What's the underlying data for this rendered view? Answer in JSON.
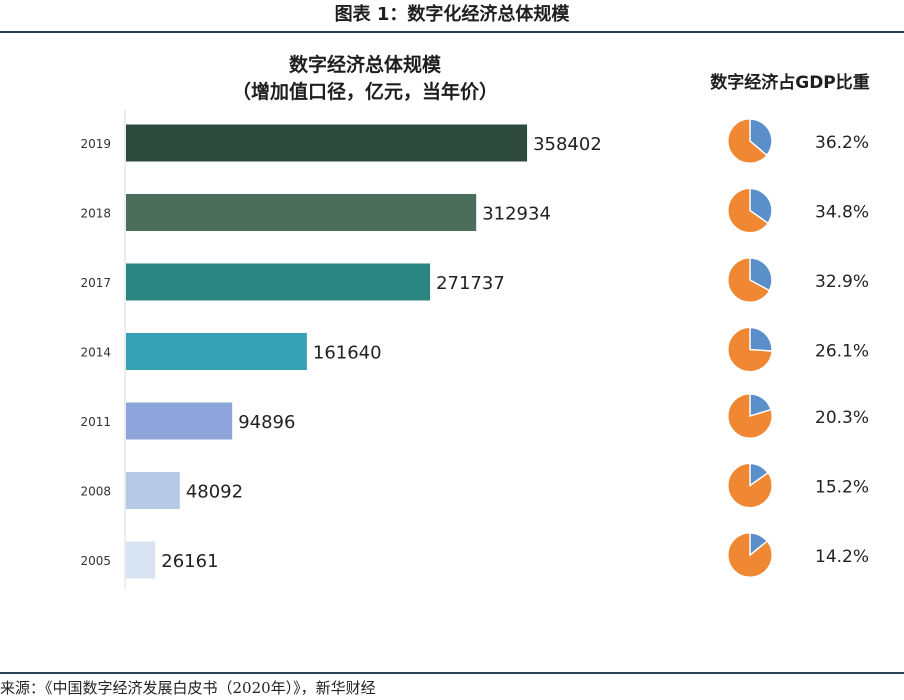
{
  "figure": {
    "title": "图表 1：数字化经济总体规模",
    "source": "来源：《中国数字经济发展白皮书（2020年）》，新华财经"
  },
  "chart_data": [
    {
      "type": "bar",
      "orientation": "horizontal",
      "title": "数字经济总体规模",
      "subtitle": "（增加值口径，亿元，当年价）",
      "categories": [
        "2019",
        "2018",
        "2017",
        "2014",
        "2011",
        "2008",
        "2005"
      ],
      "values": [
        358402,
        312934,
        271737,
        161640,
        94896,
        48092,
        26161
      ],
      "xlim": [
        0,
        420000
      ],
      "xlabel": "",
      "ylabel": "",
      "grid": false,
      "colors": [
        "#2e4a3e",
        "#4a6e5a",
        "#2a8480",
        "#35a1b2",
        "#8ea5db",
        "#b6c9e6",
        "#d8e3f2"
      ]
    },
    {
      "type": "pie",
      "title": "数字经济占GDP比重",
      "categories": [
        "2019",
        "2018",
        "2017",
        "2014",
        "2011",
        "2008",
        "2005"
      ],
      "values": [
        36.2,
        34.8,
        32.9,
        26.1,
        20.3,
        15.2,
        14.2
      ],
      "labels": [
        "36.2%",
        "34.8%",
        "32.9%",
        "26.1%",
        "20.3%",
        "15.2%",
        "14.2%"
      ],
      "unit": "%",
      "colors": {
        "share": "#5b8fc9",
        "rest": "#ef8733",
        "edge": "#ffffff"
      }
    }
  ]
}
